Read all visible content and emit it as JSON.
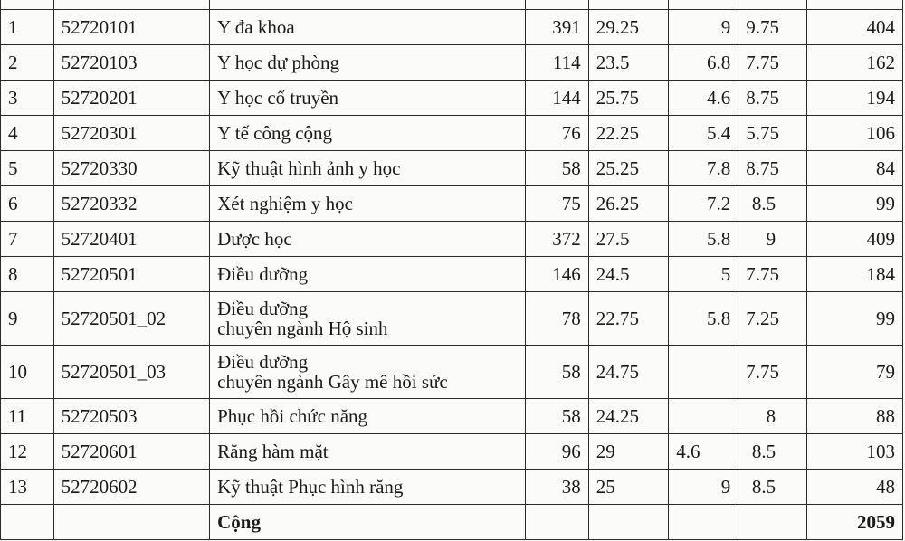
{
  "rows": [
    {
      "stt": "1",
      "code": "52720101",
      "name": "Y đa khoa",
      "c4": "391",
      "c5": "29.25",
      "c6": "9",
      "c7": "9.75",
      "c8": "404"
    },
    {
      "stt": "2",
      "code": "52720103",
      "name": "Y học dự phòng",
      "c4": "114",
      "c5": "23.5",
      "c6": "6.8",
      "c7": "7.75",
      "c8": "162"
    },
    {
      "stt": "3",
      "code": "52720201",
      "name": "Y học cổ truyền",
      "c4": "144",
      "c5": "25.75",
      "c6": "4.6",
      "c7": "8.75",
      "c8": "194"
    },
    {
      "stt": "4",
      "code": "52720301",
      "name": "Y tế công cộng",
      "c4": "76",
      "c5": "22.25",
      "c6": "5.4",
      "c7": "5.75",
      "c8": "106"
    },
    {
      "stt": "5",
      "code": "52720330",
      "name": "Kỹ thuật hình ảnh y học",
      "c4": "58",
      "c5": "25.25",
      "c6": "7.8",
      "c7": "8.75",
      "c8": "84"
    },
    {
      "stt": "6",
      "code": "52720332",
      "name": "Xét nghiệm y học",
      "c4": "75",
      "c5": "26.25",
      "c6": "7.2",
      "c7": "8.5",
      "c8": "99"
    },
    {
      "stt": "7",
      "code": "52720401",
      "name": "Dược học",
      "c4": "372",
      "c5": "27.5",
      "c6": "5.8",
      "c7": "9",
      "c8": "409"
    },
    {
      "stt": "8",
      "code": "52720501",
      "name": "Điều dưỡng",
      "c4": "146",
      "c5": "24.5",
      "c6": "5",
      "c7": "7.75",
      "c8": "184"
    },
    {
      "stt": "9",
      "code": "52720501_02",
      "name": "Điều dưỡng",
      "name2": "chuyên ngành Hộ sinh",
      "c4": "78",
      "c5": "22.75",
      "c6": "5.8",
      "c7": "7.25",
      "c8": "99"
    },
    {
      "stt": "10",
      "code": "52720501_03",
      "name": "Điều dưỡng",
      "name2": "chuyên ngành Gây mê hồi sức",
      "c4": "58",
      "c5": "24.75",
      "c6": "",
      "c7": "7.75",
      "c8": "79"
    },
    {
      "stt": "11",
      "code": "52720503",
      "name": "Phục hồi chức năng",
      "c4": "58",
      "c5": "24.25",
      "c6": "",
      "c7": "8",
      "c8": "88"
    },
    {
      "stt": "12",
      "code": "52720601",
      "name": "Răng hàm mặt",
      "c4": "96",
      "c5": "29",
      "c6": "4.6",
      "c7": "8.5",
      "c8": "103"
    },
    {
      "stt": "13",
      "code": "52720602",
      "name": "Kỹ thuật Phục hình răng",
      "c4": "38",
      "c5": "25",
      "c6": "9",
      "c7": "8.5",
      "c8": "48"
    }
  ],
  "total": {
    "label": "Cộng",
    "value": "2059"
  }
}
